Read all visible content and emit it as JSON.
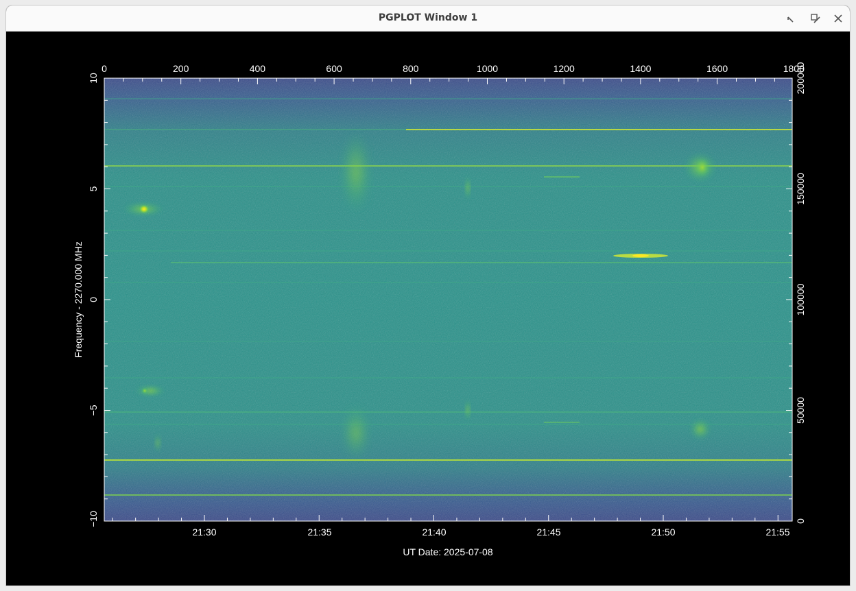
{
  "window": {
    "title": "PGPLOT Window 1",
    "controls": [
      "minimize-icon",
      "maximize-icon",
      "close-icon"
    ]
  },
  "plot": {
    "type": "dynamic spectrum (waterfall)",
    "xlabel": "UT Date: 2025-07-08",
    "ylabel": "Frequency - 2270.000 MHz",
    "bottom_ticks": [
      "21:30",
      "21:35",
      "21:40",
      "21:45",
      "21:50",
      "21:55"
    ],
    "top_ticks": [
      "0",
      "200",
      "400",
      "600",
      "800",
      "1000",
      "1200",
      "1400",
      "1600",
      "1800"
    ],
    "left_ticks": [
      "10",
      "5",
      "0",
      "−5",
      "−10"
    ],
    "right_ticks": [
      "200000",
      "150000",
      "100000",
      "50000",
      "0"
    ],
    "top_range": [
      0,
      1800
    ],
    "left_range": [
      -10,
      10
    ],
    "right_range": [
      0,
      200000
    ],
    "colors": {
      "background": "#000000",
      "axes": "#ffffff",
      "image_dark": "#3b4d8c",
      "image_mid": "#2a9a8a",
      "image_bright": "#fde725"
    }
  }
}
